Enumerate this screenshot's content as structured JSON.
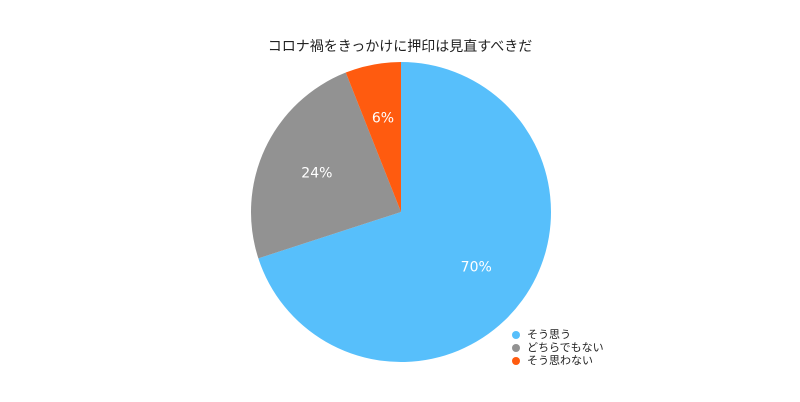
{
  "chart_data": {
    "type": "pie",
    "title": "コロナ禍をきっかけに押印は見直すべきだ",
    "categories": [
      "そう思う",
      "どちらでもない",
      "そう思わない"
    ],
    "values": [
      70,
      24,
      6
    ],
    "value_labels": [
      "70%",
      "24%",
      "6%"
    ],
    "colors": [
      "#57BFFB",
      "#929292",
      "#FF5B0F"
    ],
    "start_angle_deg": 0,
    "direction": "clockwise",
    "legend_position": "bottom-right"
  }
}
